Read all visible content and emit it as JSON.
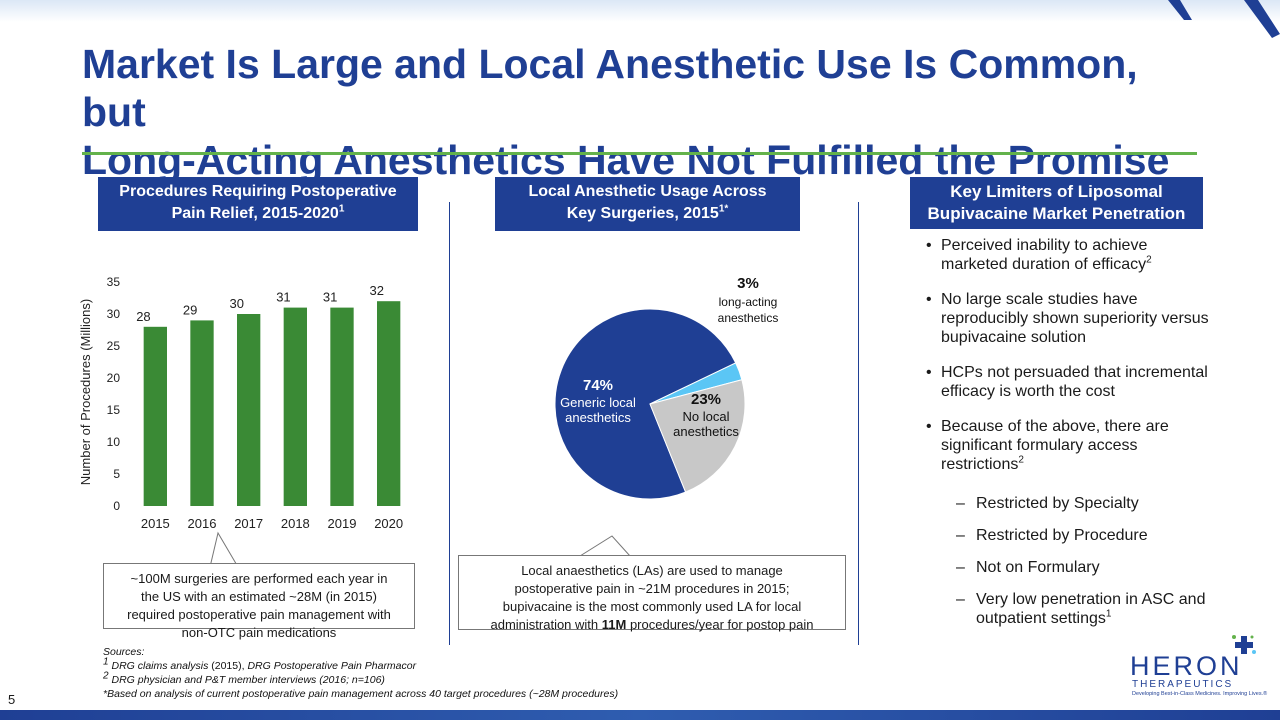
{
  "title_line1": "Market Is Large and Local Anesthetic Use Is Common, but",
  "title_line2": "Long-Acting Anesthetics Have Not Fulfilled the Promise",
  "colors": {
    "accent_blue": "#1f3f94",
    "bar_green": "#3a8a35",
    "rule_green": "#63b24b",
    "pie_light_blue": "#5bc6f5",
    "pie_gray": "#c8c8c8"
  },
  "col1": {
    "header_line1": "Procedures Requiring Postoperative",
    "header_line2": "Pain Relief, 2015-2020",
    "header_sup": "1",
    "callout_lines": [
      "~100M surgeries are performed each year in",
      "the US with an estimated ~28M (in 2015)",
      "required postoperative pain management with",
      "non-OTC pain medications"
    ]
  },
  "col2": {
    "header_line1": "Local Anesthetic Usage Across",
    "header_line2": "Key Surgeries, 2015",
    "header_sup": "1*",
    "callout_line1": "Local anaesthetics (LAs) are used to manage",
    "callout_line2": "postoperative pain in ~21M procedures in 2015;",
    "callout_line3": "bupivacaine is the most commonly used LA for local",
    "callout_line4_pre": "administration with ",
    "callout_line4_bold": "11M",
    "callout_line4_post": " procedures/year for postop pain"
  },
  "col3": {
    "header_line1": "Key Limiters of Liposomal",
    "header_line2": "Bupivacaine Market Penetration",
    "bullet1": "Perceived inability to achieve marketed duration of efficacy",
    "bullet1_sup": "2",
    "bullet2": "No large scale studies have reproducibly shown superiority versus bupivacaine solution",
    "bullet3": "HCPs not persuaded that incremental efficacy is worth the cost",
    "bullet4": "Because of the above, there are significant formulary access restrictions",
    "bullet4_sup": "2",
    "dash": "–",
    "sub1": "Restricted by Specialty",
    "sub2": "Restricted by Procedure",
    "sub3": "Not on Formulary",
    "sub4": "Very low penetration in ASC and outpatient settings",
    "sub4_sup": "1"
  },
  "chart_data": [
    {
      "type": "bar",
      "categories": [
        "2015",
        "2016",
        "2017",
        "2018",
        "2019",
        "2020"
      ],
      "values": [
        28,
        29,
        30,
        31,
        31,
        32
      ],
      "ylabel": "Number of Procedures (Millions)",
      "yticks": [
        "0",
        "5",
        "10",
        "15",
        "20",
        "25",
        "30",
        "35"
      ],
      "ylim": [
        0,
        35
      ],
      "grid": false
    },
    {
      "type": "pie",
      "slices": [
        {
          "pct_label": "74%",
          "value": 74,
          "label1": "Generic local",
          "label2": "anesthetics",
          "color": "#1f3f94"
        },
        {
          "pct_label": "3%",
          "value": 3,
          "label1": "long-acting",
          "label2": "anesthetics",
          "color": "#5bc6f5"
        },
        {
          "pct_label": "23%",
          "value": 23,
          "label1": "No local",
          "label2": "anesthetics",
          "color": "#c8c8c8"
        }
      ]
    }
  ],
  "sources": {
    "heading": "Sources:",
    "s1_sup": "1",
    "s1_a": "DRG claims analysis",
    "s1_b": " (2015), ",
    "s1_c": "DRG Postoperative Pain Pharmacor",
    "s2_sup": "2",
    "s2": "DRG physician and P&T member interviews (2016; n=106)",
    "s3": "*Based on analysis of current postoperative pain management across 40 target procedures (~28M procedures)"
  },
  "page_number": "5",
  "logo": {
    "name": "HERON",
    "sub": "THERAPEUTICS",
    "tagline": "Developing Best-in-Class Medicines. Improving Lives.®"
  }
}
